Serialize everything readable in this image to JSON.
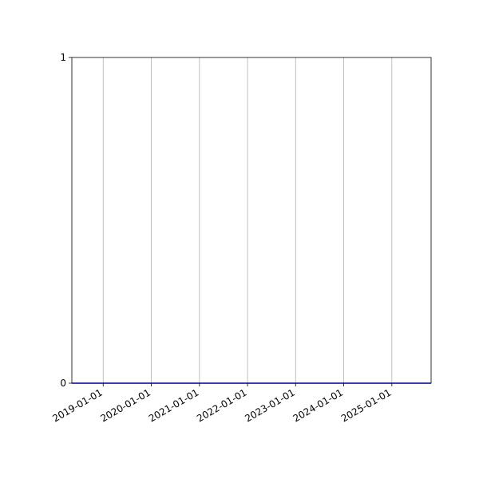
{
  "chart_data": {
    "type": "line",
    "title": "",
    "xlabel": "",
    "ylabel": "",
    "x_axis_type": "date",
    "xlim": [
      "2018-05-08",
      "2025-10-26"
    ],
    "ylim": [
      0,
      1
    ],
    "x_ticks": [
      "2019-01-01",
      "2020-01-01",
      "2021-01-01",
      "2022-01-01",
      "2023-01-01",
      "2024-01-01",
      "2025-01-01"
    ],
    "y_ticks": [
      "0",
      "1"
    ],
    "grid": {
      "x": true,
      "y": false
    },
    "series": [
      {
        "color": "#0000ff",
        "x": [
          "2018-05-08",
          "2025-10-26"
        ],
        "y": [
          0,
          0
        ]
      }
    ],
    "colors": {
      "grid": "#b0b0b0",
      "axes": "#000000"
    }
  }
}
